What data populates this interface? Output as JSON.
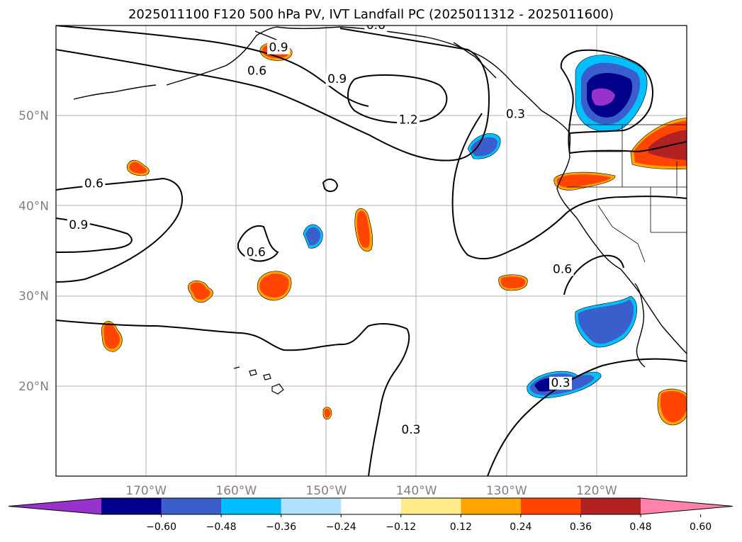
{
  "title": "2025011100 F120 500 hPa PV, IVT Landfall PC (2025011312 - 2025011600)",
  "map": {
    "lon_range": [
      -180,
      -110
    ],
    "lat_range": [
      10,
      60
    ],
    "lat_labels": [
      {
        "lat": 50,
        "text": "50°N"
      },
      {
        "lat": 40,
        "text": "40°N"
      },
      {
        "lat": 30,
        "text": "30°N"
      },
      {
        "lat": 20,
        "text": "20°N"
      }
    ],
    "lon_labels": [
      {
        "lon": -170,
        "text": "170°W"
      },
      {
        "lon": -160,
        "text": "160°W"
      },
      {
        "lon": -150,
        "text": "150°W"
      },
      {
        "lon": -140,
        "text": "140°W"
      },
      {
        "lon": -130,
        "text": "130°W"
      },
      {
        "lon": -120,
        "text": "120°W"
      }
    ],
    "contour_labels": [
      {
        "text": "0.9",
        "lon": -177.5,
        "lat": 37.5
      },
      {
        "text": "0.6",
        "lon": -175.8,
        "lat": 42.1
      },
      {
        "text": "0.6",
        "lon": -157.7,
        "lat": 54.6
      },
      {
        "text": "0.9",
        "lon": -155.3,
        "lat": 57.2
      },
      {
        "text": "0.6",
        "lon": -144.5,
        "lat": 59.7
      },
      {
        "text": "0.9",
        "lon": -148.8,
        "lat": 53.7
      },
      {
        "text": "1.2",
        "lon": -140.9,
        "lat": 49.2
      },
      {
        "text": "0.3",
        "lon": -129.0,
        "lat": 49.8
      },
      {
        "text": "0.6",
        "lon": -157.8,
        "lat": 34.5
      },
      {
        "text": "0.6",
        "lon": -123.8,
        "lat": 32.6
      },
      {
        "text": "0.3",
        "lon": -124.0,
        "lat": 20.0
      },
      {
        "text": "0.3",
        "lon": -140.6,
        "lat": 14.8
      }
    ]
  },
  "colorbar": {
    "colors": [
      "#9932CC",
      "#00008B",
      "#3A5FCD",
      "#00BFFF",
      "#B0E2FF",
      "#FFFFFF",
      "#FFEC8B",
      "#FFA500",
      "#FF4500",
      "#B22222",
      "#FF82AB"
    ],
    "ticks": [
      "−0.60",
      "−0.48",
      "−0.36",
      "−0.24",
      "−0.12",
      "0.12",
      "0.24",
      "0.36",
      "0.48",
      "0.60"
    ]
  }
}
